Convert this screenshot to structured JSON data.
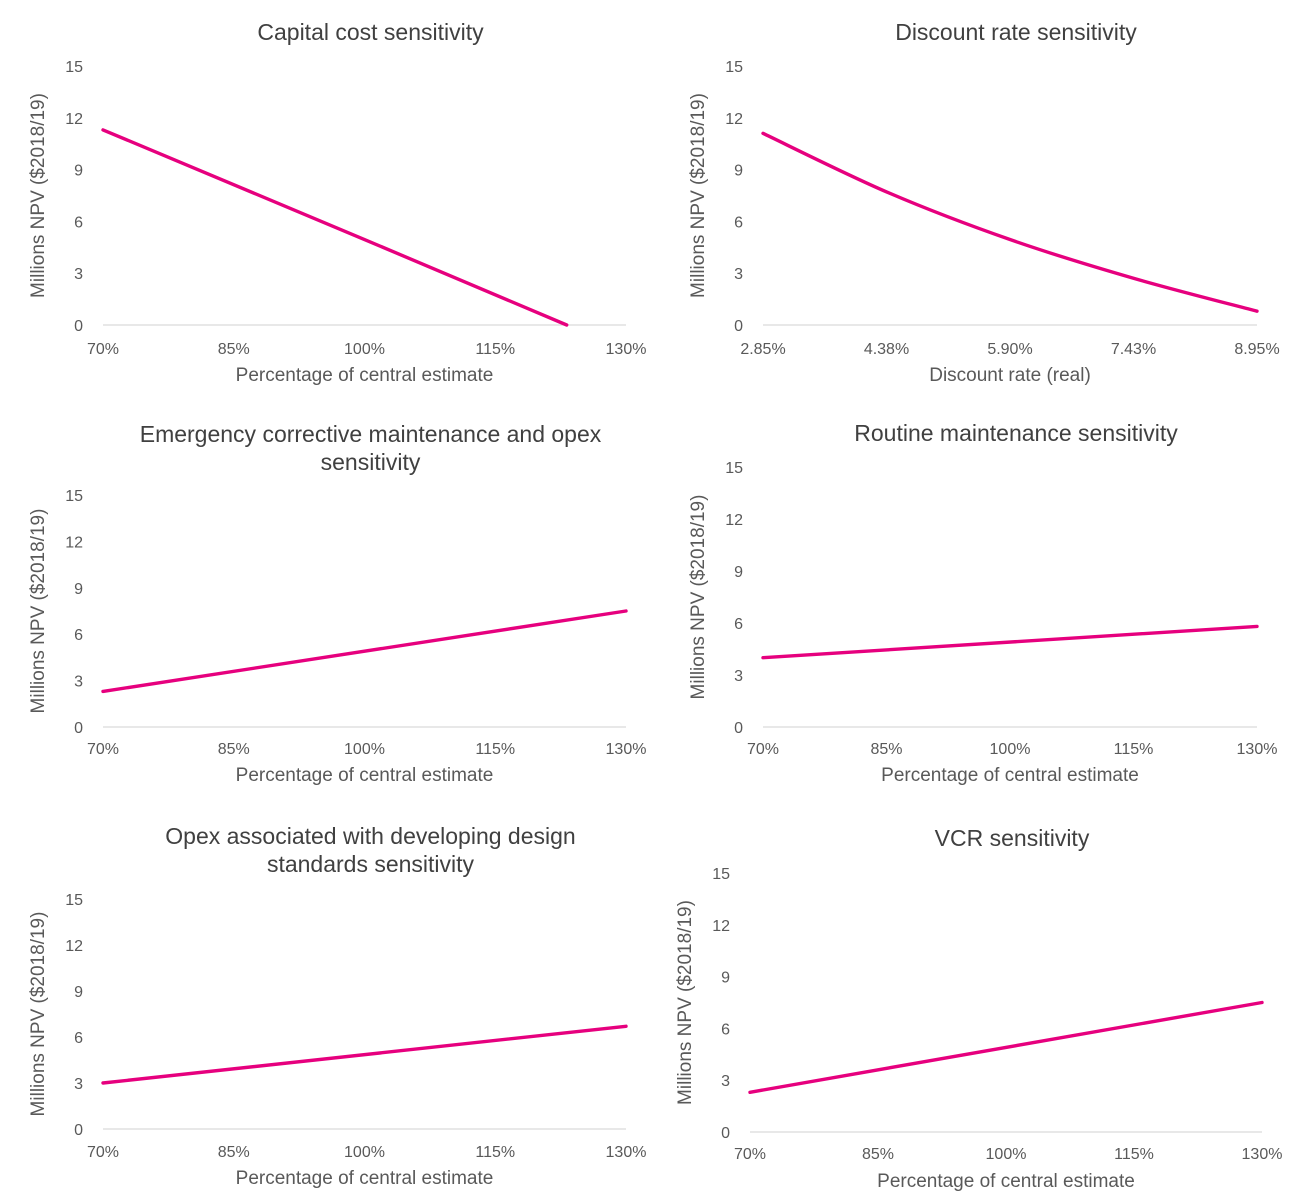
{
  "colors": {
    "series": "#e6007e",
    "axis": "#d9d9d9",
    "text": "#595959"
  },
  "chart_data": [
    {
      "type": "line",
      "title": [
        "Capital cost sensitivity"
      ],
      "xlabel": "Percentage of central estimate",
      "ylabel": "Millions NPV ($2018/19)",
      "ylim": [
        0,
        15
      ],
      "yticks": [
        "0",
        "3",
        "6",
        "9",
        "12",
        "15"
      ],
      "xticks": [
        "70%",
        "85%",
        "100%",
        "115%",
        "130%"
      ],
      "series": [
        {
          "x": [
            70,
            100,
            123.2
          ],
          "values": [
            11.3,
            4.95,
            0
          ]
        }
      ]
    },
    {
      "type": "line",
      "title": [
        "Discount rate sensitivity"
      ],
      "xlabel": "Discount rate (real)",
      "ylabel": "Millions NPV ($2018/19)",
      "ylim": [
        0,
        15
      ],
      "yticks": [
        "0",
        "3",
        "6",
        "9",
        "12",
        "15"
      ],
      "xticks": [
        "2.85%",
        "4.38%",
        "5.90%",
        "7.43%",
        "8.95%"
      ],
      "series": [
        {
          "x": [
            2.85,
            4.38,
            5.9,
            7.43,
            8.95
          ],
          "values": [
            11.1,
            7.7,
            4.95,
            2.7,
            0.8
          ]
        }
      ]
    },
    {
      "type": "line",
      "title": [
        "Emergency corrective maintenance and opex",
        "sensitivity"
      ],
      "xlabel": "Percentage of central estimate",
      "ylabel": "Millions NPV ($2018/19)",
      "ylim": [
        0,
        15
      ],
      "yticks": [
        "0",
        "3",
        "6",
        "9",
        "12",
        "15"
      ],
      "xticks": [
        "70%",
        "85%",
        "100%",
        "115%",
        "130%"
      ],
      "series": [
        {
          "x": [
            70,
            130
          ],
          "values": [
            2.3,
            7.5
          ]
        }
      ]
    },
    {
      "type": "line",
      "title": [
        "Routine maintenance sensitivity"
      ],
      "xlabel": "Percentage of central estimate",
      "ylabel": "Millions NPV ($2018/19)",
      "ylim": [
        0,
        15
      ],
      "yticks": [
        "0",
        "3",
        "6",
        "9",
        "12",
        "15"
      ],
      "xticks": [
        "70%",
        "85%",
        "100%",
        "115%",
        "130%"
      ],
      "series": [
        {
          "x": [
            70,
            130
          ],
          "values": [
            4.0,
            5.8
          ]
        }
      ]
    },
    {
      "type": "line",
      "title": [
        "Opex associated with developing design",
        "standards sensitivity"
      ],
      "xlabel": "Percentage of central estimate",
      "ylabel": "Millions NPV ($2018/19)",
      "ylim": [
        0,
        15
      ],
      "yticks": [
        "0",
        "3",
        "6",
        "9",
        "12",
        "15"
      ],
      "xticks": [
        "70%",
        "85%",
        "100%",
        "115%",
        "130%"
      ],
      "series": [
        {
          "x": [
            70,
            130
          ],
          "values": [
            3.0,
            6.7
          ]
        }
      ]
    },
    {
      "type": "line",
      "title": [
        "VCR sensitivity"
      ],
      "xlabel": "Percentage of central estimate",
      "ylabel": "Millions NPV ($2018/19)",
      "ylim": [
        0,
        15
      ],
      "yticks": [
        "0",
        "3",
        "6",
        "9",
        "12",
        "15"
      ],
      "xticks": [
        "70%",
        "85%",
        "100%",
        "115%",
        "130%"
      ],
      "series": [
        {
          "x": [
            70,
            130
          ],
          "values": [
            2.3,
            7.5
          ]
        }
      ]
    }
  ]
}
